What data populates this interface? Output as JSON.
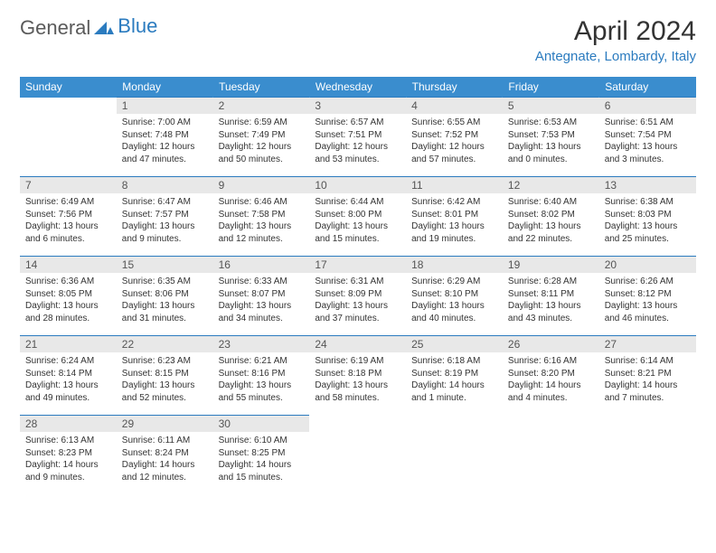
{
  "logo": {
    "text1": "General",
    "text2": "Blue",
    "icon_color": "#2b7bbf"
  },
  "header": {
    "title": "April 2024",
    "location": "Antegnate, Lombardy, Italy"
  },
  "style": {
    "header_row_bg": "#3a8dce",
    "header_row_fg": "#ffffff",
    "daynum_bg": "#e8e8e8",
    "border_color": "#2b7bbf",
    "location_color": "#2b7bbf",
    "title_fontsize": 30,
    "location_fontsize": 15,
    "header_fontsize": 12,
    "cell_fontsize": 10
  },
  "weekdays": [
    "Sunday",
    "Monday",
    "Tuesday",
    "Wednesday",
    "Thursday",
    "Friday",
    "Saturday"
  ],
  "days": {
    "1": {
      "sunrise": "7:00 AM",
      "sunset": "7:48 PM",
      "daylight": "12 hours and 47 minutes."
    },
    "2": {
      "sunrise": "6:59 AM",
      "sunset": "7:49 PM",
      "daylight": "12 hours and 50 minutes."
    },
    "3": {
      "sunrise": "6:57 AM",
      "sunset": "7:51 PM",
      "daylight": "12 hours and 53 minutes."
    },
    "4": {
      "sunrise": "6:55 AM",
      "sunset": "7:52 PM",
      "daylight": "12 hours and 57 minutes."
    },
    "5": {
      "sunrise": "6:53 AM",
      "sunset": "7:53 PM",
      "daylight": "13 hours and 0 minutes."
    },
    "6": {
      "sunrise": "6:51 AM",
      "sunset": "7:54 PM",
      "daylight": "13 hours and 3 minutes."
    },
    "7": {
      "sunrise": "6:49 AM",
      "sunset": "7:56 PM",
      "daylight": "13 hours and 6 minutes."
    },
    "8": {
      "sunrise": "6:47 AM",
      "sunset": "7:57 PM",
      "daylight": "13 hours and 9 minutes."
    },
    "9": {
      "sunrise": "6:46 AM",
      "sunset": "7:58 PM",
      "daylight": "13 hours and 12 minutes."
    },
    "10": {
      "sunrise": "6:44 AM",
      "sunset": "8:00 PM",
      "daylight": "13 hours and 15 minutes."
    },
    "11": {
      "sunrise": "6:42 AM",
      "sunset": "8:01 PM",
      "daylight": "13 hours and 19 minutes."
    },
    "12": {
      "sunrise": "6:40 AM",
      "sunset": "8:02 PM",
      "daylight": "13 hours and 22 minutes."
    },
    "13": {
      "sunrise": "6:38 AM",
      "sunset": "8:03 PM",
      "daylight": "13 hours and 25 minutes."
    },
    "14": {
      "sunrise": "6:36 AM",
      "sunset": "8:05 PM",
      "daylight": "13 hours and 28 minutes."
    },
    "15": {
      "sunrise": "6:35 AM",
      "sunset": "8:06 PM",
      "daylight": "13 hours and 31 minutes."
    },
    "16": {
      "sunrise": "6:33 AM",
      "sunset": "8:07 PM",
      "daylight": "13 hours and 34 minutes."
    },
    "17": {
      "sunrise": "6:31 AM",
      "sunset": "8:09 PM",
      "daylight": "13 hours and 37 minutes."
    },
    "18": {
      "sunrise": "6:29 AM",
      "sunset": "8:10 PM",
      "daylight": "13 hours and 40 minutes."
    },
    "19": {
      "sunrise": "6:28 AM",
      "sunset": "8:11 PM",
      "daylight": "13 hours and 43 minutes."
    },
    "20": {
      "sunrise": "6:26 AM",
      "sunset": "8:12 PM",
      "daylight": "13 hours and 46 minutes."
    },
    "21": {
      "sunrise": "6:24 AM",
      "sunset": "8:14 PM",
      "daylight": "13 hours and 49 minutes."
    },
    "22": {
      "sunrise": "6:23 AM",
      "sunset": "8:15 PM",
      "daylight": "13 hours and 52 minutes."
    },
    "23": {
      "sunrise": "6:21 AM",
      "sunset": "8:16 PM",
      "daylight": "13 hours and 55 minutes."
    },
    "24": {
      "sunrise": "6:19 AM",
      "sunset": "8:18 PM",
      "daylight": "13 hours and 58 minutes."
    },
    "25": {
      "sunrise": "6:18 AM",
      "sunset": "8:19 PM",
      "daylight": "14 hours and 1 minute."
    },
    "26": {
      "sunrise": "6:16 AM",
      "sunset": "8:20 PM",
      "daylight": "14 hours and 4 minutes."
    },
    "27": {
      "sunrise": "6:14 AM",
      "sunset": "8:21 PM",
      "daylight": "14 hours and 7 minutes."
    },
    "28": {
      "sunrise": "6:13 AM",
      "sunset": "8:23 PM",
      "daylight": "14 hours and 9 minutes."
    },
    "29": {
      "sunrise": "6:11 AM",
      "sunset": "8:24 PM",
      "daylight": "14 hours and 12 minutes."
    },
    "30": {
      "sunrise": "6:10 AM",
      "sunset": "8:25 PM",
      "daylight": "14 hours and 15 minutes."
    }
  },
  "labels": {
    "sunrise": "Sunrise:",
    "sunset": "Sunset:",
    "daylight": "Daylight:"
  },
  "grid": [
    [
      null,
      1,
      2,
      3,
      4,
      5,
      6
    ],
    [
      7,
      8,
      9,
      10,
      11,
      12,
      13
    ],
    [
      14,
      15,
      16,
      17,
      18,
      19,
      20
    ],
    [
      21,
      22,
      23,
      24,
      25,
      26,
      27
    ],
    [
      28,
      29,
      30,
      null,
      null,
      null,
      null
    ]
  ]
}
